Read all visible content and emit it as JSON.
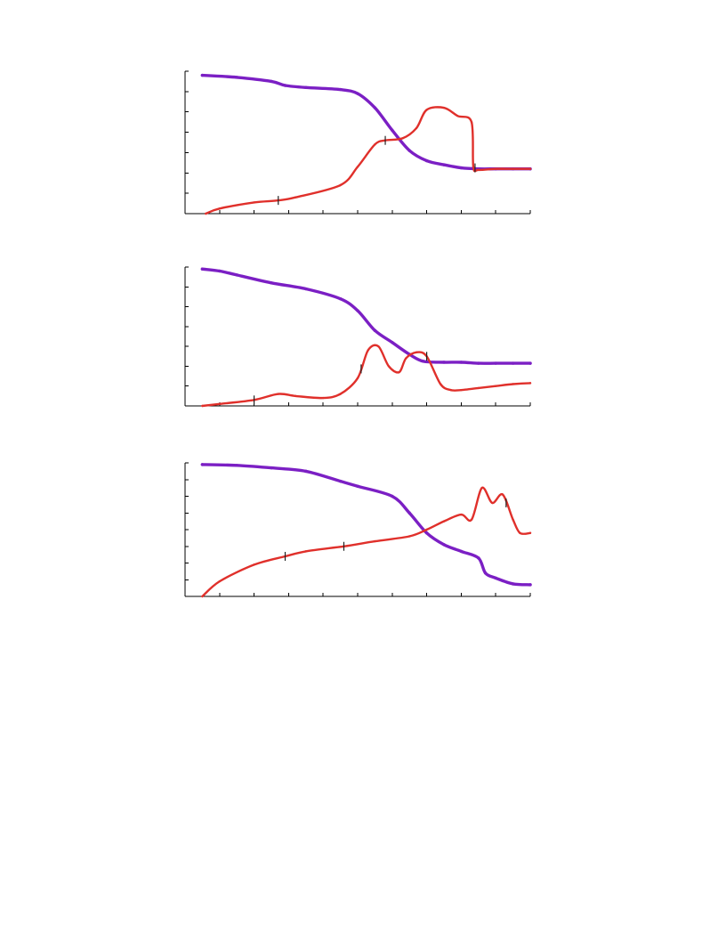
{
  "colors": {
    "series_a": "#7b1fc4",
    "series_b": "#e0302b",
    "axis": "#000000"
  },
  "chart_data": [
    {
      "type": "line",
      "title": "",
      "xlabel": "",
      "ylabel": "",
      "xlim": [
        0,
        10
      ],
      "ylim": [
        0,
        7
      ],
      "x_ticks": [
        0,
        1,
        2,
        3,
        4,
        5,
        6,
        7,
        8,
        9,
        10
      ],
      "y_ticks": [
        0,
        1,
        2,
        3,
        4,
        5,
        6,
        7
      ],
      "grid": false,
      "legend": "none",
      "series": [
        {
          "color": "#7b1fc4",
          "x": [
            0.5,
            1.5,
            2.5,
            2.9,
            3.5,
            4.5,
            5.0,
            5.5,
            6.0,
            6.5,
            7.0,
            7.5,
            8.0,
            8.5,
            9.0,
            9.5,
            10.0
          ],
          "y": [
            6.8,
            6.7,
            6.5,
            6.3,
            6.2,
            6.1,
            5.9,
            5.2,
            4.1,
            3.1,
            2.6,
            2.4,
            2.25,
            2.2,
            2.2,
            2.2,
            2.2
          ]
        },
        {
          "color": "#e0302b",
          "x": [
            0.6,
            1.0,
            2.0,
            2.7,
            3.2,
            4.5,
            5.0,
            5.5,
            5.8,
            6.3,
            6.7,
            7.0,
            7.5,
            7.9,
            8.3,
            8.35,
            8.5,
            9.0,
            9.5,
            10.0
          ],
          "y": [
            0.0,
            0.25,
            0.55,
            0.65,
            0.8,
            1.4,
            2.3,
            3.4,
            3.6,
            3.7,
            4.2,
            5.1,
            5.2,
            4.8,
            4.5,
            2.3,
            2.15,
            2.2,
            2.2,
            2.2
          ]
        }
      ],
      "markers": [
        {
          "series": 1,
          "x": 2.7
        },
        {
          "series": 1,
          "x": 5.8
        },
        {
          "series": 1,
          "x": 8.4
        }
      ]
    },
    {
      "type": "line",
      "title": "",
      "xlabel": "",
      "ylabel": "",
      "xlim": [
        0,
        10
      ],
      "ylim": [
        0,
        7
      ],
      "x_ticks": [
        0,
        1,
        2,
        3,
        4,
        5,
        6,
        7,
        8,
        9,
        10
      ],
      "y_ticks": [
        0,
        1,
        2,
        3,
        4,
        5,
        6,
        7
      ],
      "grid": false,
      "legend": "none",
      "series": [
        {
          "color": "#7b1fc4",
          "x": [
            0.5,
            1.0,
            1.5,
            2.5,
            3.5,
            4.5,
            5.0,
            5.5,
            6.0,
            6.5,
            6.9,
            7.5,
            8.0,
            8.5,
            9.0,
            9.5,
            10.0
          ],
          "y": [
            6.9,
            6.8,
            6.6,
            6.2,
            5.9,
            5.4,
            4.8,
            3.8,
            3.2,
            2.6,
            2.25,
            2.2,
            2.2,
            2.15,
            2.15,
            2.15,
            2.15
          ]
        },
        {
          "color": "#e0302b",
          "x": [
            0.5,
            1.0,
            2.0,
            2.7,
            3.2,
            4.0,
            4.5,
            5.0,
            5.3,
            5.6,
            5.9,
            6.2,
            6.4,
            6.7,
            7.0,
            7.4,
            7.7,
            8.0,
            8.5,
            9.0,
            9.5,
            10.0
          ],
          "y": [
            0.0,
            0.1,
            0.3,
            0.6,
            0.5,
            0.4,
            0.6,
            1.4,
            2.8,
            3.0,
            2.0,
            1.7,
            2.4,
            2.7,
            2.5,
            1.1,
            0.8,
            0.8,
            0.9,
            1.0,
            1.1,
            1.15
          ]
        }
      ],
      "markers": [
        {
          "series": 1,
          "x": 2.0
        },
        {
          "series": 1,
          "x": 5.1
        },
        {
          "series": 1,
          "x": 7.0
        }
      ]
    },
    {
      "type": "line",
      "title": "",
      "xlabel": "",
      "ylabel": "",
      "xlim": [
        0,
        10
      ],
      "ylim": [
        0,
        8
      ],
      "x_ticks": [
        0,
        1,
        2,
        3,
        4,
        5,
        6,
        7,
        8,
        9,
        10
      ],
      "y_ticks": [
        0,
        1,
        2,
        3,
        4,
        5,
        6,
        7,
        8
      ],
      "grid": false,
      "legend": "none",
      "series": [
        {
          "color": "#7b1fc4",
          "x": [
            0.5,
            1.5,
            2.5,
            3.5,
            4.5,
            5.0,
            6.0,
            6.5,
            7.0,
            7.5,
            8.0,
            8.5,
            8.7,
            9.0,
            9.5,
            10.0
          ],
          "y": [
            7.9,
            7.85,
            7.7,
            7.5,
            6.9,
            6.6,
            6.0,
            5.0,
            3.8,
            3.1,
            2.7,
            2.3,
            1.4,
            1.1,
            0.75,
            0.7
          ]
        },
        {
          "color": "#e0302b",
          "x": [
            0.5,
            1.0,
            2.0,
            2.9,
            3.5,
            4.6,
            5.5,
            6.5,
            7.0,
            7.5,
            8.0,
            8.3,
            8.6,
            8.9,
            9.2,
            9.5,
            9.7,
            10.0
          ],
          "y": [
            0.0,
            0.9,
            1.9,
            2.4,
            2.7,
            3.0,
            3.3,
            3.6,
            4.0,
            4.5,
            4.9,
            4.6,
            6.5,
            5.6,
            6.1,
            4.6,
            3.8,
            3.8
          ]
        }
      ],
      "markers": [
        {
          "series": 1,
          "x": 2.9
        },
        {
          "series": 1,
          "x": 4.6
        },
        {
          "series": 1,
          "x": 9.3
        }
      ]
    }
  ]
}
